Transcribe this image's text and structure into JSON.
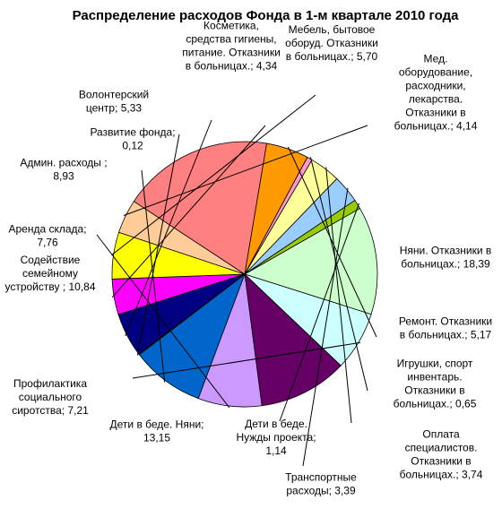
{
  "chart_data": {
    "type": "pie",
    "title": "Распределение расходов Фонда в 1-м квартале 2010 года",
    "slices": [
      {
        "label": "Косметика, средства гигиены, питание. Отказники в больницах.; 4,34",
        "lines": [
          "Косметика,",
          "средства гигиены,",
          "питание. Отказники",
          "в больницах.; 4,34"
        ],
        "value": 4.34,
        "color": "#ff00ff"
      },
      {
        "label": "Мебель, бытовое оборуд. Отказники в больницах.; 5,70",
        "lines": [
          "Мебель, бытовое",
          "оборуд. Отказники",
          "в больницах.; 5,70"
        ],
        "value": 5.7,
        "color": "#ffff00"
      },
      {
        "label": "Мед. оборудование, расходники, лекарства. Отказники в больницах.; 4,14",
        "lines": [
          "Мед.",
          "оборудование,",
          "расходники,",
          "лекарства.",
          "Отказники в",
          "больницах.; 4,14"
        ],
        "value": 4.14,
        "color": "#ffcc99"
      },
      {
        "label": "Няни. Отказники в больницах.; 18,39",
        "lines": [
          "Няни. Отказники в",
          "больницах.; 18,39"
        ],
        "value": 18.39,
        "color": "#ff8080"
      },
      {
        "label": "Ремонт. Отказники в больницах.; 5,17",
        "lines": [
          "Ремонт. Отказники",
          "в больницах.; 5,17"
        ],
        "value": 5.17,
        "color": "#ff9900"
      },
      {
        "label": "Игрушки, спорт инвентарь. Отказники в больницах.; 0,65",
        "lines": [
          "Игрушки, спорт",
          "инвентарь.",
          "Отказники в",
          "больницах.; 0,65"
        ],
        "value": 0.65,
        "color": "#ff99cc"
      },
      {
        "label": "Оплата специалистов. Отказники в больницах.; 3,74",
        "lines": [
          "Оплата",
          "специалистов.",
          "Отказники в",
          "больницах.; 3,74"
        ],
        "value": 3.74,
        "color": "#ffff99"
      },
      {
        "label": "Транспортные расходы; 3,39",
        "lines": [
          "Транспортные",
          "расходы; 3,39"
        ],
        "value": 3.39,
        "color": "#99ccff"
      },
      {
        "label": "Дети в беде. Нужды проекта; 1,14",
        "lines": [
          "Дети в беде.",
          "Нужды проекта;",
          "1,14"
        ],
        "value": 1.14,
        "color": "#99cc00"
      },
      {
        "label": "Дети в беде. Няни; 13,15",
        "lines": [
          "Дети в беде. Няни;",
          "13,15"
        ],
        "value": 13.15,
        "color": "#ccffcc"
      },
      {
        "label": "Профилактика социального сиротства; 7,21",
        "lines": [
          "Профилактика",
          "социального",
          "сиротства; 7,21"
        ],
        "value": 7.21,
        "color": "#ccffff"
      },
      {
        "label": "Содействие семейному устройству ; 10,84",
        "lines": [
          "Содействие",
          "семейному",
          "устройству ; 10,84"
        ],
        "value": 10.84,
        "color": "#660066"
      },
      {
        "label": "Аренда склада; 7,76",
        "lines": [
          "Аренда склада;",
          "7,76"
        ],
        "value": 7.76,
        "color": "#cc99ff"
      },
      {
        "label": "Админ. расходы ; 8,93",
        "lines": [
          "Админ. расходы ;",
          "8,93"
        ],
        "value": 8.93,
        "color": "#0066cc"
      },
      {
        "label": "Развитие фонда; 0,12",
        "lines": [
          "Развитие фонда;",
          "0,12"
        ],
        "value": 0.12,
        "color": "#333399"
      },
      {
        "label": "Волонтерский центр; 5,33",
        "lines": [
          "Волонтерский",
          "центр; 5,33"
        ],
        "value": 5.33,
        "color": "#000080"
      }
    ]
  }
}
